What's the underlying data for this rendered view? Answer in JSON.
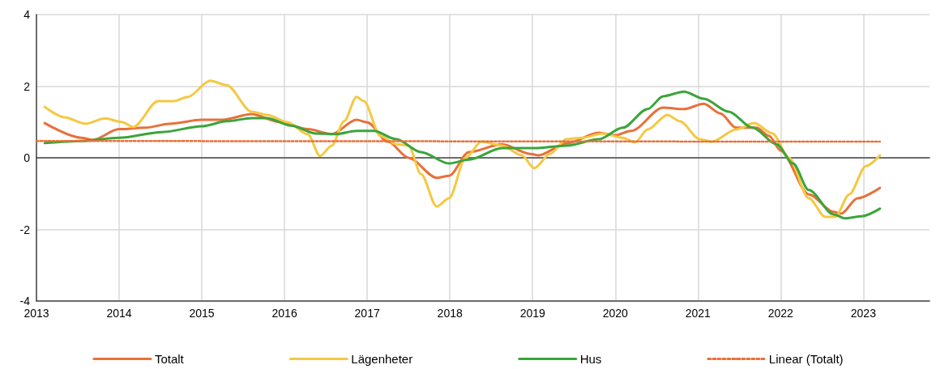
{
  "chart_data": {
    "type": "line",
    "xlim": [
      2013,
      2023.8
    ],
    "xticks": [
      2013,
      2014,
      2015,
      2016,
      2017,
      2018,
      2019,
      2020,
      2021,
      2022,
      2023
    ],
    "ylim": [
      -4,
      4
    ],
    "yticks": [
      -4,
      -2,
      0,
      2,
      4
    ],
    "grid": true,
    "legend": "bottom",
    "marker": "none",
    "line_style": "solid",
    "series": [
      {
        "name": "Totalt",
        "color": "#e8703a",
        "x": [
          2013.1,
          2013.54,
          2013.68,
          2014.0,
          2014.32,
          2014.61,
          2015.0,
          2015.25,
          2015.6,
          2015.94,
          2016.28,
          2016.57,
          2016.87,
          2017.0,
          2017.25,
          2017.5,
          2017.84,
          2017.99,
          2018.23,
          2018.63,
          2018.97,
          2019.07,
          2019.41,
          2019.8,
          2020.0,
          2020.19,
          2020.58,
          2020.83,
          2021.07,
          2021.27,
          2021.46,
          2021.71,
          2021.86,
          2022.0,
          2022.34,
          2022.64,
          2022.73,
          2022.93,
          2023.2
        ],
        "values": [
          0.97,
          0.56,
          0.5,
          0.8,
          0.84,
          0.95,
          1.06,
          1.06,
          1.22,
          1.0,
          0.8,
          0.66,
          1.06,
          0.99,
          0.45,
          0.0,
          -0.56,
          -0.5,
          0.16,
          0.38,
          0.11,
          0.07,
          0.4,
          0.7,
          0.63,
          0.75,
          1.4,
          1.36,
          1.51,
          1.24,
          0.84,
          0.84,
          0.61,
          0.2,
          -1.02,
          -1.51,
          -1.56,
          -1.13,
          -0.84
        ]
      },
      {
        "name": "Lägenheter",
        "color": "#f5c842",
        "x": [
          2013.1,
          2013.34,
          2013.59,
          2013.83,
          2014.03,
          2014.17,
          2014.47,
          2014.66,
          2014.83,
          2015.1,
          2015.3,
          2015.6,
          2015.79,
          2016.03,
          2016.28,
          2016.43,
          2016.57,
          2016.72,
          2016.87,
          2016.96,
          2017.16,
          2017.35,
          2017.5,
          2017.65,
          2017.84,
          2017.99,
          2018.19,
          2018.38,
          2018.63,
          2018.87,
          2019.02,
          2019.21,
          2019.41,
          2019.6,
          2019.85,
          2020.09,
          2020.24,
          2020.39,
          2020.63,
          2020.78,
          2021.02,
          2021.17,
          2021.46,
          2021.68,
          2021.9,
          2022.1,
          2022.34,
          2022.54,
          2022.66,
          2022.83,
          2023.03,
          2023.2
        ],
        "values": [
          1.42,
          1.13,
          0.95,
          1.1,
          1.0,
          0.86,
          1.58,
          1.58,
          1.7,
          2.15,
          2.03,
          1.29,
          1.2,
          1.0,
          0.66,
          0.05,
          0.34,
          1.02,
          1.7,
          1.58,
          0.61,
          0.38,
          0.34,
          -0.45,
          -1.36,
          -1.13,
          0.0,
          0.45,
          0.34,
          0.07,
          -0.29,
          0.11,
          0.52,
          0.56,
          0.68,
          0.56,
          0.43,
          0.79,
          1.2,
          1.02,
          0.52,
          0.45,
          0.79,
          0.97,
          0.68,
          0.0,
          -1.13,
          -1.65,
          -1.65,
          -1.02,
          -0.23,
          0.07
        ]
      },
      {
        "name": "Hus",
        "color": "#3aa53a",
        "x": [
          2013.1,
          2013.54,
          2014.0,
          2014.52,
          2015.0,
          2015.3,
          2015.6,
          2015.79,
          2016.08,
          2016.38,
          2016.62,
          2016.87,
          2017.08,
          2017.35,
          2017.65,
          2017.99,
          2018.23,
          2018.63,
          2019.02,
          2019.41,
          2019.8,
          2020.09,
          2020.39,
          2020.58,
          2020.83,
          2021.07,
          2021.37,
          2021.66,
          2021.95,
          2022.15,
          2022.34,
          2022.64,
          2022.78,
          2022.98,
          2023.2
        ],
        "values": [
          0.41,
          0.47,
          0.56,
          0.72,
          0.88,
          1.02,
          1.11,
          1.11,
          0.9,
          0.68,
          0.66,
          0.75,
          0.75,
          0.52,
          0.16,
          -0.16,
          -0.05,
          0.27,
          0.27,
          0.34,
          0.52,
          0.84,
          1.36,
          1.72,
          1.85,
          1.65,
          1.29,
          0.84,
          0.38,
          -0.16,
          -0.9,
          -1.58,
          -1.69,
          -1.63,
          -1.42
        ]
      },
      {
        "name": "Linear (Totalt)",
        "color": "#e8703a",
        "line_style": "dotted",
        "x": [
          2013,
          2023.2
        ],
        "values": [
          0.47,
          0.45
        ]
      }
    ]
  }
}
